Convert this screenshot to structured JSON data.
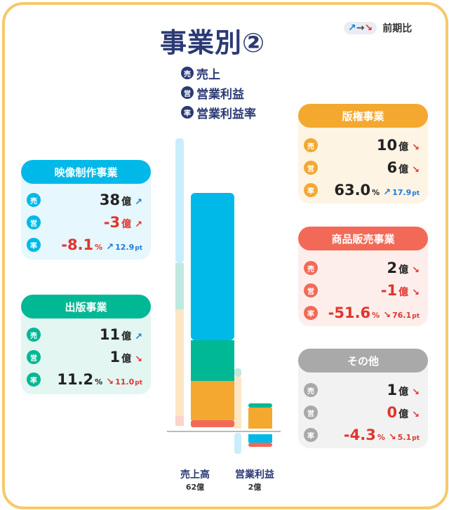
{
  "title": "事業別②",
  "comparison": {
    "arrows": "↗→↘",
    "label": "前期比"
  },
  "legend": [
    {
      "badge": "売",
      "label": "売上"
    },
    {
      "badge": "営",
      "label": "営業利益"
    },
    {
      "badge": "率",
      "label": "営業利益率"
    }
  ],
  "segments": [
    {
      "name": "映像制作事業",
      "sales": "38",
      "op": "-3",
      "rate": "-8.1",
      "rate_change": "12.9",
      "sales_trend": "↗",
      "op_trend": "↗",
      "rate_trend": "↗",
      "op_negative": true,
      "rate_negative": true
    },
    {
      "name": "出版事業",
      "sales": "11",
      "op": "1",
      "rate": "11.2",
      "rate_change": "11.0",
      "sales_trend": "↗",
      "op_trend": "↘",
      "rate_trend": "↘",
      "op_negative": false,
      "rate_negative": false
    },
    {
      "name": "版権事業",
      "sales": "10",
      "op": "6",
      "rate": "63.0",
      "rate_change": "17.9",
      "sales_trend": "↘",
      "op_trend": "↘",
      "rate_trend": "↗",
      "op_negative": false,
      "rate_negative": false
    },
    {
      "name": "商品販売事業",
      "sales": "2",
      "op": "-1",
      "rate": "-51.6",
      "rate_change": "76.1",
      "sales_trend": "↘",
      "op_trend": "↘",
      "rate_trend": "↘",
      "op_negative": true,
      "rate_negative": true
    },
    {
      "name": "その他",
      "sales": "1",
      "op": "0",
      "rate": "-4.3",
      "rate_change": "5.1",
      "sales_trend": "↘",
      "op_trend": "↘",
      "rate_trend": "↘",
      "op_negative": true,
      "rate_negative": true
    }
  ],
  "units": {
    "oku": "億",
    "pct": "%",
    "pt": "pt"
  },
  "badges": {
    "sales": "売",
    "op": "営",
    "rate": "率"
  },
  "bars": {
    "sales_label": "売上高",
    "sales_total": "62億",
    "op_label": "営業利益",
    "op_total": "2億"
  },
  "colors": {
    "navy": "#2b3a74",
    "video": "#00b9e8",
    "publish": "#00b894",
    "rights": "#f4a82f",
    "goods": "#f26a57",
    "other": "#a9a9a9",
    "frame": "#f7c86b"
  }
}
